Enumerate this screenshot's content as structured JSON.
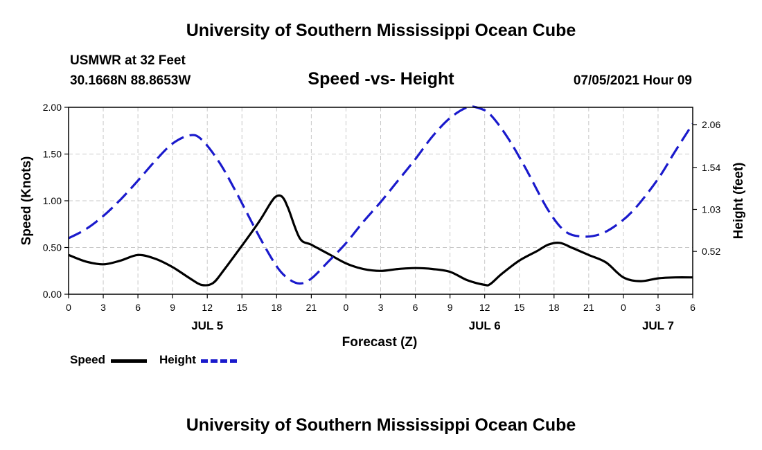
{
  "page": {
    "title_top": "University of Southern Mississippi Ocean Cube",
    "title_bottom": "University of Southern Mississippi Ocean Cube",
    "station": "USMWR at 32 Feet",
    "coords": "30.1668N  88.8653W",
    "chart_title": "Speed -vs- Height",
    "datetime": "07/05/2021 Hour 09"
  },
  "legend": {
    "speed": "Speed",
    "height": "Height"
  },
  "colors": {
    "speed": "#000000",
    "height": "#1a1acc",
    "grid": "#c8c8c8"
  },
  "chart_data": {
    "type": "line",
    "title": "Speed -vs- Height",
    "xlabel": "Forecast (Z)",
    "ylabel": "Speed (Knots)",
    "y2label": "Height (feet)",
    "xlim": [
      0,
      54
    ],
    "ylim": [
      0,
      2.0
    ],
    "y2lim": [
      0,
      2.27
    ],
    "x_ticks": [
      0,
      3,
      6,
      9,
      12,
      15,
      18,
      21,
      24,
      27,
      30,
      33,
      36,
      39,
      42,
      45,
      48,
      51,
      54
    ],
    "x_tick_labels": [
      "0",
      "3",
      "6",
      "9",
      "12",
      "15",
      "18",
      "21",
      "0",
      "3",
      "6",
      "9",
      "12",
      "15",
      "18",
      "21",
      "0",
      "3",
      "6"
    ],
    "date_labels": [
      {
        "x": 12,
        "label": "JUL 5"
      },
      {
        "x": 36,
        "label": "JUL 6"
      },
      {
        "x": 51,
        "label": "JUL 7"
      }
    ],
    "y_ticks": [
      0,
      0.5,
      1.0,
      1.5,
      2.0
    ],
    "y_tick_labels": [
      "0.00",
      "0.50",
      "1.00",
      "1.50",
      "2.00"
    ],
    "y2_ticks": [
      0.52,
      1.03,
      1.54,
      2.06
    ],
    "y2_tick_labels": [
      "0.52",
      "1.03",
      "1.54",
      "2.06"
    ],
    "series": [
      {
        "name": "Speed",
        "axis": "left",
        "x": [
          0,
          1.5,
          3,
          4.5,
          6,
          7.5,
          9,
          10.5,
          11.5,
          12.5,
          13.5,
          15,
          16.5,
          17.5,
          18,
          18.5,
          19,
          20,
          21,
          22.5,
          24,
          25.5,
          27,
          28.5,
          30,
          31.5,
          33,
          34.5,
          36,
          36.5,
          37.5,
          39,
          40.5,
          41.5,
          42.5,
          43.5,
          45,
          46.5,
          48,
          49.5,
          51,
          52.5,
          54
        ],
        "values": [
          0.42,
          0.35,
          0.32,
          0.36,
          0.42,
          0.38,
          0.29,
          0.17,
          0.1,
          0.12,
          0.27,
          0.52,
          0.78,
          0.98,
          1.05,
          1.04,
          0.92,
          0.6,
          0.53,
          0.43,
          0.33,
          0.27,
          0.25,
          0.27,
          0.28,
          0.27,
          0.24,
          0.15,
          0.1,
          0.11,
          0.22,
          0.36,
          0.46,
          0.53,
          0.55,
          0.5,
          0.42,
          0.34,
          0.18,
          0.14,
          0.17,
          0.18,
          0.18
        ]
      },
      {
        "name": "Height",
        "axis": "right",
        "style": "dashed",
        "x": [
          0,
          1.5,
          3,
          4.5,
          6,
          7.5,
          9,
          10.5,
          11.5,
          13,
          14.5,
          16.5,
          18,
          19,
          20,
          21,
          22.5,
          24,
          25.5,
          27,
          28.5,
          30,
          31.5,
          33,
          34.5,
          35.5,
          36.5,
          38,
          39.5,
          41.5,
          43,
          44.5,
          46,
          47.5,
          49,
          51,
          52.5,
          54
        ],
        "values": [
          0.68,
          0.79,
          0.95,
          1.15,
          1.38,
          1.62,
          1.83,
          1.93,
          1.88,
          1.61,
          1.24,
          0.7,
          0.34,
          0.19,
          0.13,
          0.19,
          0.4,
          0.62,
          0.88,
          1.12,
          1.38,
          1.64,
          1.92,
          2.14,
          2.27,
          2.26,
          2.18,
          1.9,
          1.54,
          1.02,
          0.76,
          0.7,
          0.73,
          0.85,
          1.04,
          1.4,
          1.74,
          2.07
        ]
      }
    ]
  }
}
